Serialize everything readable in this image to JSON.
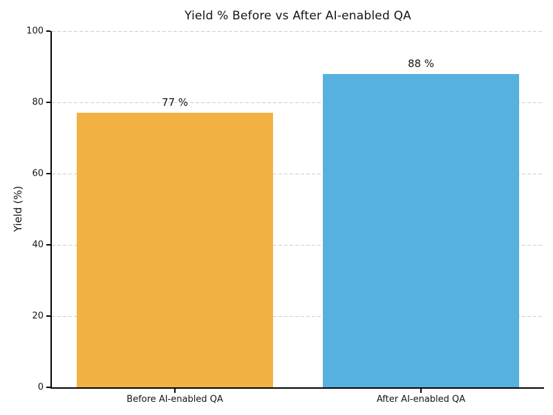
{
  "chart_data": {
    "type": "bar",
    "title": "Yield % Before vs After AI-enabled QA",
    "xlabel": "",
    "ylabel": "Yield (%)",
    "categories": [
      "Before AI-enabled QA",
      "After AI-enabled QA"
    ],
    "values": [
      77,
      88
    ],
    "value_labels": [
      "77 %",
      "88 %"
    ],
    "bar_colors": [
      "#F2B143",
      "#56B1DF"
    ],
    "ylim": [
      0,
      100
    ],
    "yticks": [
      0,
      20,
      40,
      60,
      80,
      100
    ],
    "bar_width_fraction": 0.8,
    "grid": "horizontal dashed",
    "gridline_color": "#CCCCCC",
    "axis_color": "#000000",
    "text_color": "#141414",
    "legend_position": "none"
  }
}
